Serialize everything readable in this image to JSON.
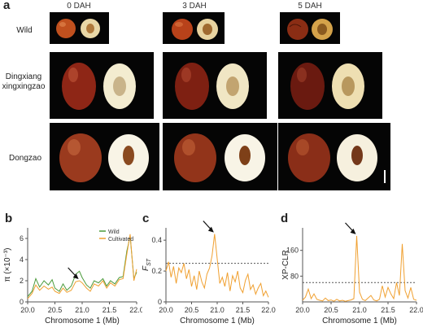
{
  "panel_a": {
    "letter": "a",
    "columns": [
      "0 DAH",
      "3 DAH",
      "5 DAH"
    ],
    "rows": [
      {
        "label_lines": [
          "Wild"
        ]
      },
      {
        "label_lines": [
          "Dingxiang",
          "xingxingzao"
        ]
      },
      {
        "label_lines": [
          "Dongzao"
        ]
      }
    ]
  },
  "panel_b": {
    "letter": "b",
    "chart_data": {
      "type": "line",
      "xlabel": "Chromosome 1 (Mb)",
      "ylabel": "π (×10⁻³)",
      "xlim": [
        20.0,
        22.0
      ],
      "ylim": [
        0,
        7
      ],
      "xticks": [
        "20.0",
        "20.5",
        "21.0",
        "21.5",
        "22.0"
      ],
      "yticks": [
        "0",
        "2",
        "4",
        "6"
      ],
      "series": [
        {
          "name": "Wild",
          "color": "#4a9a3a",
          "x": [
            20.0,
            20.08,
            20.15,
            20.22,
            20.3,
            20.38,
            20.45,
            20.5,
            20.58,
            20.65,
            20.72,
            20.8,
            20.88,
            20.95,
            21.0,
            21.08,
            21.15,
            21.22,
            21.3,
            21.38,
            21.45,
            21.52,
            21.6,
            21.68,
            21.75,
            21.82,
            21.88,
            21.95,
            22.0
          ],
          "y": [
            0.5,
            1.0,
            2.2,
            1.4,
            2.0,
            1.6,
            2.1,
            1.3,
            1.0,
            1.7,
            1.1,
            1.5,
            2.6,
            2.9,
            2.3,
            1.6,
            1.3,
            2.0,
            1.8,
            2.2,
            1.5,
            2.0,
            1.7,
            2.3,
            2.4,
            4.8,
            6.2,
            2.2,
            2.8
          ]
        },
        {
          "name": "Cultivated",
          "color": "#f0a030",
          "x": [
            20.0,
            20.08,
            20.15,
            20.22,
            20.3,
            20.38,
            20.45,
            20.5,
            20.58,
            20.65,
            20.72,
            20.8,
            20.88,
            20.95,
            21.0,
            21.08,
            21.15,
            21.22,
            21.3,
            21.38,
            21.45,
            21.52,
            21.6,
            21.68,
            21.75,
            21.82,
            21.88,
            21.95,
            22.0
          ],
          "y": [
            0.3,
            0.8,
            1.6,
            1.1,
            1.5,
            1.2,
            1.4,
            1.0,
            0.8,
            1.3,
            0.9,
            1.1,
            1.9,
            2.0,
            1.8,
            1.3,
            1.0,
            1.7,
            1.5,
            2.0,
            1.3,
            1.8,
            1.5,
            2.1,
            2.2,
            4.5,
            6.4,
            2.0,
            3.1
          ]
        }
      ],
      "legend": "top-right",
      "arrow_x": 20.95
    }
  },
  "panel_c": {
    "letter": "c",
    "chart_data": {
      "type": "line",
      "xlabel": "Chromosome 1 (Mb)",
      "ylabel": "F",
      "ylabel_sub": "ST",
      "xlim": [
        20.0,
        22.0
      ],
      "ylim": [
        0,
        0.48
      ],
      "xticks": [
        "20.0",
        "20.5",
        "21.0",
        "21.5",
        "22.0"
      ],
      "yticks": [
        "0",
        "0.2",
        "0.4"
      ],
      "threshold": 0.25,
      "series": [
        {
          "color": "#f0a030",
          "x": [
            20.0,
            20.05,
            20.1,
            20.15,
            20.2,
            20.25,
            20.3,
            20.35,
            20.4,
            20.45,
            20.5,
            20.55,
            20.6,
            20.65,
            20.7,
            20.75,
            20.8,
            20.85,
            20.9,
            20.95,
            21.0,
            21.05,
            21.1,
            21.15,
            21.2,
            21.25,
            21.3,
            21.35,
            21.4,
            21.45,
            21.5,
            21.55,
            21.6,
            21.65,
            21.7,
            21.75,
            21.8,
            21.85,
            21.9,
            21.95,
            22.0
          ],
          "y": [
            0.2,
            0.26,
            0.16,
            0.23,
            0.12,
            0.22,
            0.19,
            0.25,
            0.15,
            0.21,
            0.1,
            0.17,
            0.08,
            0.2,
            0.13,
            0.09,
            0.18,
            0.22,
            0.3,
            0.44,
            0.28,
            0.12,
            0.16,
            0.1,
            0.19,
            0.07,
            0.17,
            0.13,
            0.2,
            0.09,
            0.06,
            0.14,
            0.18,
            0.08,
            0.11,
            0.05,
            0.09,
            0.12,
            0.04,
            0.07,
            0.03
          ]
        }
      ],
      "arrow_x": 20.93
    }
  },
  "panel_d": {
    "letter": "d",
    "chart_data": {
      "type": "line",
      "xlabel": "Chromosome 1 (Mb)",
      "ylabel": "XP-CLR",
      "xlim": [
        20.0,
        22.0
      ],
      "ylim": [
        0,
        230
      ],
      "xticks": [
        "20.0",
        "20.5",
        "21.0",
        "21.5",
        "22.0"
      ],
      "yticks": [
        "80",
        "160"
      ],
      "threshold": 60,
      "series": [
        {
          "color": "#f0a030",
          "x": [
            20.0,
            20.05,
            20.1,
            20.15,
            20.2,
            20.25,
            20.3,
            20.35,
            20.4,
            20.45,
            20.5,
            20.55,
            20.6,
            20.65,
            20.7,
            20.75,
            20.8,
            20.85,
            20.9,
            20.95,
            21.0,
            21.05,
            21.1,
            21.15,
            21.2,
            21.25,
            21.3,
            21.35,
            21.4,
            21.45,
            21.5,
            21.55,
            21.6,
            21.65,
            21.7,
            21.75,
            21.8,
            21.85,
            21.9,
            21.95,
            22.0
          ],
          "y": [
            5,
            15,
            40,
            10,
            25,
            8,
            5,
            3,
            12,
            4,
            6,
            2,
            8,
            3,
            5,
            2,
            4,
            6,
            10,
            205,
            30,
            8,
            4,
            12,
            20,
            6,
            3,
            8,
            50,
            15,
            45,
            25,
            10,
            60,
            20,
            180,
            35,
            12,
            45,
            8,
            5
          ]
        }
      ],
      "arrow_x": 20.95
    }
  }
}
